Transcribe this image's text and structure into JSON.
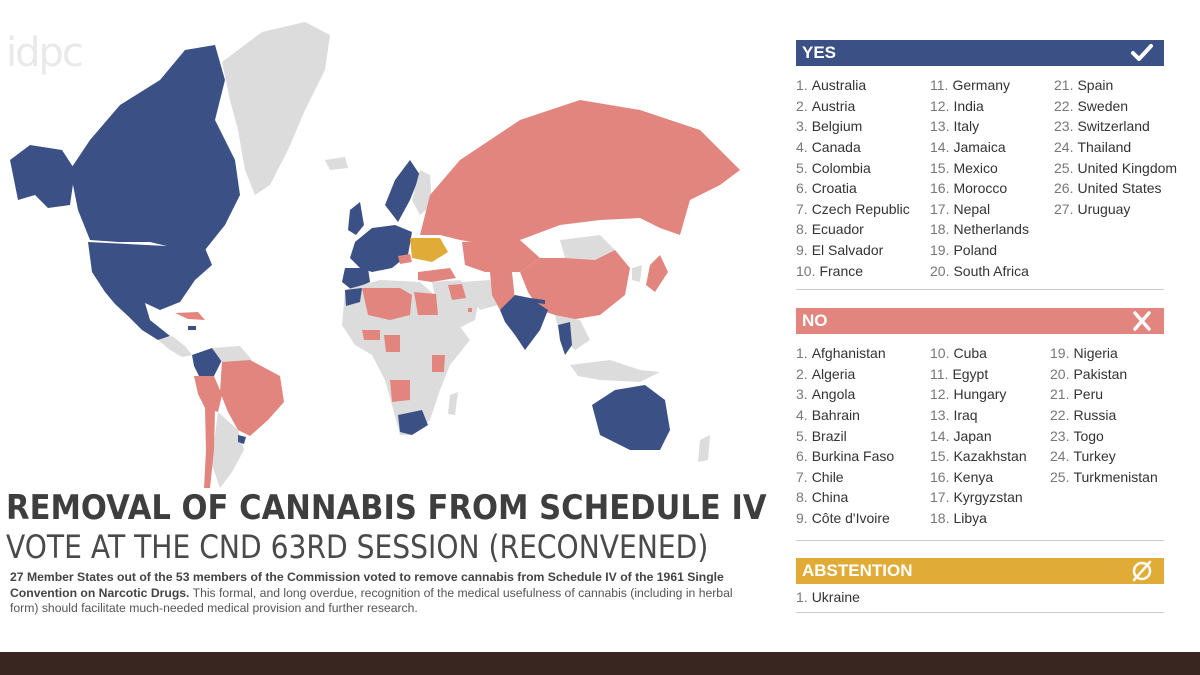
{
  "logo": "idpc",
  "title": "REMOVAL OF CANNABIS FROM SCHEDULE IV",
  "subtitle": "VOTE AT THE CND 63RD SESSION (RECONVENED)",
  "description": {
    "bold": "27 Member States out of the 53 members of the Commission voted to remove cannabis from Schedule IV of the 1961 Single Convention on Narcotic Drugs.",
    "rest": " This formal, and long overdue, recognition of the medical usefulness of cannabis (including in herbal form) should facilitate much-needed medical provision and further research."
  },
  "colors": {
    "yes": "#3b5185",
    "no": "#e2857f",
    "abstention": "#e0ac37",
    "no_vote": "#dcdcdc",
    "footer": "#3a2620"
  },
  "yes": {
    "label": "YES",
    "icon": "checkmark-icon",
    "countries": [
      "Australia",
      "Austria",
      "Belgium",
      "Canada",
      "Colombia",
      "Croatia",
      "Czech Republic",
      "Ecuador",
      "El Salvador",
      "France",
      "Germany",
      "India",
      "Italy",
      "Jamaica",
      "Mexico",
      "Morocco",
      "Nepal",
      "Netherlands",
      "Poland",
      "South Africa",
      "Spain",
      "Sweden",
      "Switzerland",
      "Thailand",
      "United Kingdom",
      "United States",
      "Uruguay"
    ]
  },
  "no": {
    "label": "NO",
    "icon": "x-icon",
    "countries": [
      "Afghanistan",
      "Algeria",
      "Angola",
      "Bahrain",
      "Brazil",
      "Burkina Faso",
      "Chile",
      "China",
      "Côte d'Ivoire",
      "Cuba",
      "Egypt",
      "Hungary",
      "Iraq",
      "Japan",
      "Kazakhstan",
      "Kenya",
      "Kyrgyzstan",
      "Libya",
      "Nigeria",
      "Pakistan",
      "Peru",
      "Russia",
      "Togo",
      "Turkey",
      "Turkmenistan"
    ]
  },
  "abstention": {
    "label": "ABSTENTION",
    "icon": "empty-set-icon",
    "countries": [
      "Ukraine"
    ]
  }
}
